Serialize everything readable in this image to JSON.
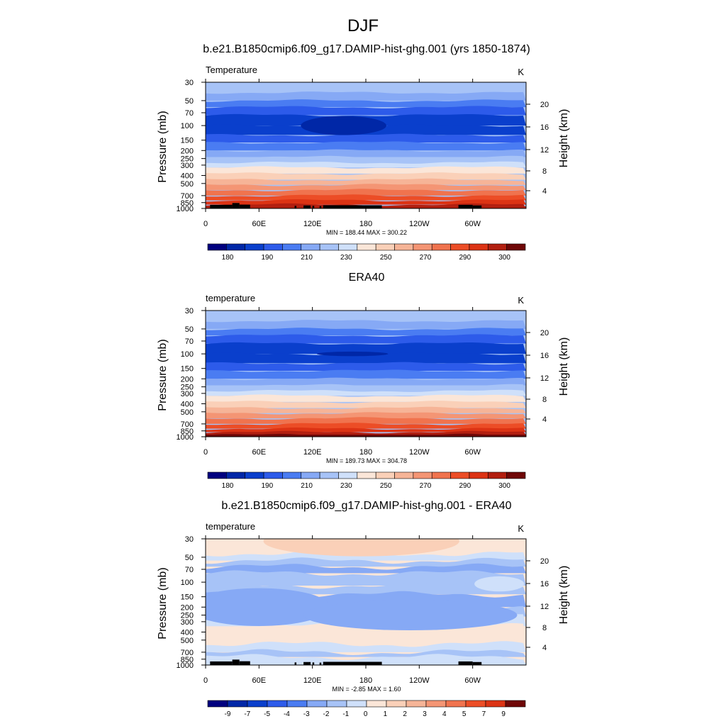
{
  "page_title": "DJF",
  "colors": {
    "abs_palette": [
      "#00007f",
      "#0027a7",
      "#0a3fcc",
      "#2d5bea",
      "#4a7cf2",
      "#86a9f5",
      "#a7c3f7",
      "#cfe0fa",
      "#fbe6d8",
      "#fad0b8",
      "#f6b497",
      "#f49574",
      "#f0734e",
      "#ec4d26",
      "#dc3314",
      "#b21f10",
      "#6f0707"
    ],
    "anom_palette": [
      "#00007f",
      "#0027a7",
      "#0a3fcc",
      "#2d5bea",
      "#4a7cf2",
      "#86a9f5",
      "#a7c3f7",
      "#cfe0fa",
      "#fbe6d8",
      "#fad0b8",
      "#f6b497",
      "#f49574",
      "#f0734e",
      "#ec4d26",
      "#dc3314",
      "#6f0707"
    ],
    "topography": "#000000"
  },
  "chart_data": [
    {
      "type": "heatmap",
      "title": "b.e21.B1850cmip6.f09_g17.DAMIP-hist-ghg.001 (yrs 1850-1874)",
      "left_label": "Temperature",
      "units": "K",
      "ylabel": "Pressure (mb)",
      "ylabel_right": "Height (km)",
      "x_ticks": [
        "0",
        "60E",
        "120E",
        "180",
        "120W",
        "60W"
      ],
      "y_ticks": [
        "30",
        "50",
        "70",
        "100",
        "150",
        "200",
        "250",
        "300",
        "400",
        "500",
        "700",
        "850",
        "1000"
      ],
      "y_right_ticks": [
        "20",
        "16",
        "12",
        "8",
        "4"
      ],
      "stats": "MIN = 188.44  MAX = 300.22",
      "colorbar_labels": [
        "180",
        "190",
        "210",
        "230",
        "250",
        "270",
        "290",
        "300"
      ],
      "profile": [
        {
          "p": 30,
          "v": 6
        },
        {
          "p": 40,
          "v": 5
        },
        {
          "p": 50,
          "v": 4
        },
        {
          "p": 60,
          "v": 3
        },
        {
          "p": 75,
          "v": 2
        },
        {
          "p": 100,
          "v": 2
        },
        {
          "p": 130,
          "v": 3
        },
        {
          "p": 160,
          "v": 4
        },
        {
          "p": 200,
          "v": 5
        },
        {
          "p": 240,
          "v": 6
        },
        {
          "p": 280,
          "v": 7
        },
        {
          "p": 320,
          "v": 8
        },
        {
          "p": 380,
          "v": 9
        },
        {
          "p": 450,
          "v": 10
        },
        {
          "p": 520,
          "v": 11
        },
        {
          "p": 600,
          "v": 12
        },
        {
          "p": 700,
          "v": 13
        },
        {
          "p": 800,
          "v": 14
        },
        {
          "p": 900,
          "v": 15
        }
      ],
      "features": [
        {
          "lon": 155,
          "p": 100,
          "v": 1,
          "w": 24,
          "h": 0.025
        }
      ],
      "topography": [
        [
          5,
          30,
          905
        ],
        [
          30,
          38,
          860
        ],
        [
          38,
          50,
          900
        ],
        [
          100,
          102,
          930
        ],
        [
          110,
          118,
          920
        ],
        [
          120,
          122,
          930
        ],
        [
          128,
          130,
          935
        ],
        [
          132,
          198,
          915
        ],
        [
          284,
          300,
          905
        ],
        [
          300,
          310,
          920
        ]
      ]
    },
    {
      "type": "heatmap",
      "title": "ERA40",
      "left_label": "temperature",
      "units": "K",
      "ylabel": "Pressure (mb)",
      "ylabel_right": "Height (km)",
      "x_ticks": [
        "0",
        "60E",
        "120E",
        "180",
        "120W",
        "60W"
      ],
      "y_ticks": [
        "30",
        "50",
        "70",
        "100",
        "150",
        "200",
        "250",
        "300",
        "400",
        "500",
        "700",
        "850",
        "1000"
      ],
      "y_right_ticks": [
        "20",
        "16",
        "12",
        "8",
        "4"
      ],
      "stats": "MIN = 189.73  MAX = 304.78",
      "colorbar_labels": [
        "180",
        "190",
        "210",
        "230",
        "250",
        "270",
        "290",
        "300"
      ],
      "profile": [
        {
          "p": 30,
          "v": 6
        },
        {
          "p": 40,
          "v": 5
        },
        {
          "p": 50,
          "v": 4
        },
        {
          "p": 60,
          "v": 3
        },
        {
          "p": 75,
          "v": 2
        },
        {
          "p": 100,
          "v": 2
        },
        {
          "p": 130,
          "v": 3
        },
        {
          "p": 160,
          "v": 4
        },
        {
          "p": 200,
          "v": 5
        },
        {
          "p": 240,
          "v": 6
        },
        {
          "p": 280,
          "v": 7
        },
        {
          "p": 320,
          "v": 8
        },
        {
          "p": 380,
          "v": 9
        },
        {
          "p": 450,
          "v": 10
        },
        {
          "p": 520,
          "v": 11
        },
        {
          "p": 600,
          "v": 12
        },
        {
          "p": 700,
          "v": 13
        },
        {
          "p": 800,
          "v": 14
        },
        {
          "p": 880,
          "v": 15
        },
        {
          "p": 950,
          "v": 16
        }
      ],
      "features": [
        {
          "lon": 165,
          "p": 100,
          "v": 1,
          "w": 20,
          "h": 0.006
        }
      ],
      "topography": []
    },
    {
      "type": "heatmap",
      "title": "b.e21.B1850cmip6.f09_g17.DAMIP-hist-ghg.001 - ERA40",
      "left_label": "temperature",
      "units": "K",
      "ylabel": "Pressure (mb)",
      "ylabel_right": "Height (km)",
      "x_ticks": [
        "0",
        "60E",
        "120E",
        "180",
        "120W",
        "60W"
      ],
      "y_ticks": [
        "30",
        "50",
        "70",
        "100",
        "150",
        "200",
        "250",
        "300",
        "400",
        "500",
        "700",
        "850",
        "1000"
      ],
      "y_right_ticks": [
        "20",
        "16",
        "12",
        "8",
        "4"
      ],
      "stats": "MIN =  -2.85  MAX =   1.60",
      "colorbar_labels": [
        "-9",
        "-7",
        "-5",
        "-4",
        "-3",
        "-2",
        "-1",
        "0",
        "1",
        "2",
        "3",
        "4",
        "5",
        "7",
        "9"
      ],
      "profile": [
        {
          "p": 30,
          "v": 8
        },
        {
          "p": 45,
          "v": 7
        },
        {
          "p": 55,
          "v": 6
        },
        {
          "p": 65,
          "v": 5
        },
        {
          "p": 78,
          "v": 6
        },
        {
          "p": 110,
          "v": 6
        },
        {
          "p": 140,
          "v": 5
        },
        {
          "p": 200,
          "v": 6
        },
        {
          "p": 260,
          "v": 7
        },
        {
          "p": 340,
          "v": 8
        },
        {
          "p": 560,
          "v": 7
        },
        {
          "p": 700,
          "v": 6
        },
        {
          "p": 800,
          "v": 7
        }
      ],
      "features": [
        {
          "lon": 175,
          "p": 32,
          "v": 9,
          "w": 55,
          "h": 0.04
        },
        {
          "lon": 330,
          "p": 105,
          "v": 7,
          "w": 14,
          "h": 0.02
        },
        {
          "lon": 60,
          "p": 200,
          "v": 5,
          "w": 40,
          "h": 0.05
        },
        {
          "lon": 230,
          "p": 250,
          "v": 5,
          "w": 60,
          "h": 0.04
        }
      ],
      "topography": [
        [
          5,
          30,
          905
        ],
        [
          30,
          38,
          860
        ],
        [
          38,
          50,
          900
        ],
        [
          100,
          102,
          930
        ],
        [
          110,
          118,
          920
        ],
        [
          120,
          122,
          930
        ],
        [
          128,
          130,
          935
        ],
        [
          132,
          198,
          915
        ],
        [
          284,
          300,
          905
        ],
        [
          300,
          310,
          920
        ]
      ]
    }
  ]
}
